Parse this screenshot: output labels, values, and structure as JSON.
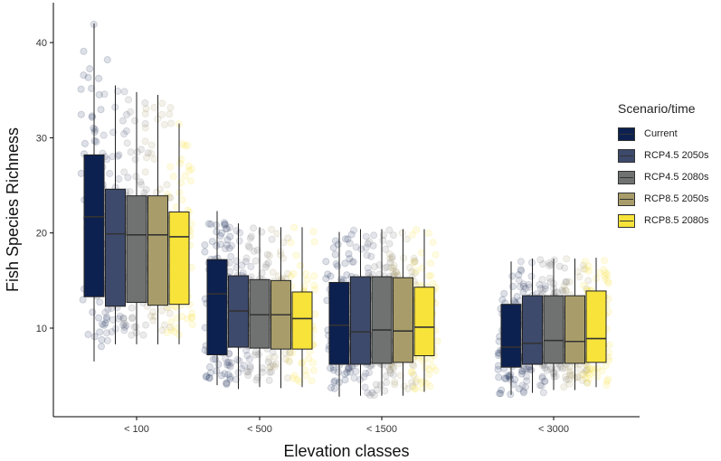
{
  "chart_data": {
    "type": "boxplot",
    "xlabel": "Elevation classes",
    "ylabel": "Fish Species Richness",
    "categories": [
      "< 100",
      "< 500",
      "< 1500",
      "< 3000"
    ],
    "yticks": [
      10,
      20,
      30,
      40
    ],
    "ylim": [
      2,
      44
    ],
    "legend": {
      "title": "Scenario/time",
      "position": "right"
    },
    "series": [
      {
        "name": "Current",
        "color": "#0d2150",
        "boxes": [
          {
            "min": 6.5,
            "q1": 13.3,
            "median": 21.7,
            "q3": 28.2,
            "max": 42
          },
          {
            "min": 4.0,
            "q1": 7.2,
            "median": 13.6,
            "q3": 17.2,
            "max": 22.3
          },
          {
            "min": 2.8,
            "q1": 6.2,
            "median": 10.3,
            "q3": 14.8,
            "max": 20.1
          },
          {
            "min": 3.0,
            "q1": 5.9,
            "median": 8.0,
            "q3": 12.5,
            "max": 17.0
          }
        ]
      },
      {
        "name": "RCP4.5 2050s",
        "color": "#3d4a6c",
        "boxes": [
          {
            "min": 8.3,
            "q1": 12.3,
            "median": 19.9,
            "q3": 24.6,
            "max": 35.5
          },
          {
            "min": 3.6,
            "q1": 8.0,
            "median": 11.8,
            "q3": 15.5,
            "max": 21.0
          },
          {
            "min": 2.9,
            "q1": 6.2,
            "median": 9.6,
            "q3": 15.4,
            "max": 20.4
          },
          {
            "min": 3.2,
            "q1": 6.2,
            "median": 8.4,
            "q3": 13.4,
            "max": 17.3
          }
        ]
      },
      {
        "name": "RCP4.5 2080s",
        "color": "#707272",
        "boxes": [
          {
            "min": 8.3,
            "q1": 12.7,
            "median": 19.8,
            "q3": 23.9,
            "max": 34.8
          },
          {
            "min": 3.8,
            "q1": 7.9,
            "median": 11.4,
            "q3": 15.1,
            "max": 20.6
          },
          {
            "min": 2.9,
            "q1": 6.3,
            "median": 9.8,
            "q3": 15.4,
            "max": 20.4
          },
          {
            "min": 3.5,
            "q1": 6.3,
            "median": 8.7,
            "q3": 13.4,
            "max": 17.3
          }
        ]
      },
      {
        "name": "RCP8.5 2050s",
        "color": "#a89d6a",
        "boxes": [
          {
            "min": 8.3,
            "q1": 12.4,
            "median": 19.8,
            "q3": 23.9,
            "max": 34.5
          },
          {
            "min": 3.7,
            "q1": 7.8,
            "median": 11.4,
            "q3": 15.0,
            "max": 20.6
          },
          {
            "min": 2.9,
            "q1": 6.4,
            "median": 9.7,
            "q3": 15.3,
            "max": 20.4
          },
          {
            "min": 3.5,
            "q1": 6.3,
            "median": 8.6,
            "q3": 13.4,
            "max": 17.3
          }
        ]
      },
      {
        "name": "RCP8.5 2080s",
        "color": "#f7e33a",
        "boxes": [
          {
            "min": 8.3,
            "q1": 12.5,
            "median": 19.6,
            "q3": 22.2,
            "max": 31.5
          },
          {
            "min": 3.8,
            "q1": 7.8,
            "median": 11.0,
            "q3": 13.8,
            "max": 20.6
          },
          {
            "min": 3.3,
            "q1": 7.1,
            "median": 10.1,
            "q3": 14.3,
            "max": 20.4
          },
          {
            "min": 3.8,
            "q1": 6.4,
            "median": 8.9,
            "q3": 13.9,
            "max": 17.4
          }
        ]
      }
    ]
  }
}
